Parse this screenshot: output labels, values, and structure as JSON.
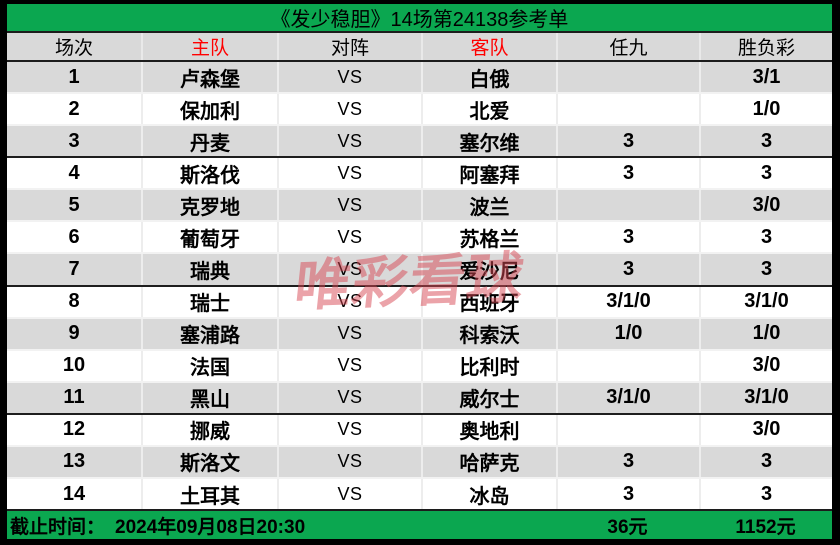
{
  "title": "《发少稳胆》14场第24138参考单",
  "watermark": "唯彩看球",
  "colors": {
    "banner_green": "#0ba750",
    "row_alt_gray": "#d9d9d9",
    "header_accent_red": "#ff0000",
    "watermark_red": "#d84854",
    "border_black": "#000000"
  },
  "table": {
    "headers": [
      "场次",
      "主队",
      "对阵",
      "客队",
      "任九",
      "胜负彩"
    ],
    "rows": [
      {
        "no": "1",
        "home": "卢森堡",
        "vs": "VS",
        "away": "白俄",
        "renjiu": "",
        "sfc": "3/1"
      },
      {
        "no": "2",
        "home": "保加利",
        "vs": "VS",
        "away": "北爱",
        "renjiu": "",
        "sfc": "1/0"
      },
      {
        "no": "3",
        "home": "丹麦",
        "vs": "VS",
        "away": "塞尔维",
        "renjiu": "3",
        "sfc": "3"
      },
      {
        "no": "4",
        "home": "斯洛伐",
        "vs": "VS",
        "away": "阿塞拜",
        "renjiu": "3",
        "sfc": "3"
      },
      {
        "no": "5",
        "home": "克罗地",
        "vs": "VS",
        "away": "波兰",
        "renjiu": "",
        "sfc": "3/0"
      },
      {
        "no": "6",
        "home": "葡萄牙",
        "vs": "VS",
        "away": "苏格兰",
        "renjiu": "3",
        "sfc": "3"
      },
      {
        "no": "7",
        "home": "瑞典",
        "vs": "VS",
        "away": "爱沙尼",
        "renjiu": "3",
        "sfc": "3"
      },
      {
        "no": "8",
        "home": "瑞士",
        "vs": "VS",
        "away": "西班牙",
        "renjiu": "3/1/0",
        "sfc": "3/1/0"
      },
      {
        "no": "9",
        "home": "塞浦路",
        "vs": "VS",
        "away": "科索沃",
        "renjiu": "1/0",
        "sfc": "1/0"
      },
      {
        "no": "10",
        "home": "法国",
        "vs": "VS",
        "away": "比利时",
        "renjiu": "",
        "sfc": "3/0"
      },
      {
        "no": "11",
        "home": "黑山",
        "vs": "VS",
        "away": "威尔士",
        "renjiu": "3/1/0",
        "sfc": "3/1/0"
      },
      {
        "no": "12",
        "home": "挪威",
        "vs": "VS",
        "away": "奥地利",
        "renjiu": "",
        "sfc": "3/0"
      },
      {
        "no": "13",
        "home": "斯洛文",
        "vs": "VS",
        "away": "哈萨克",
        "renjiu": "3",
        "sfc": "3"
      },
      {
        "no": "14",
        "home": "土耳其",
        "vs": "VS",
        "away": "冰岛",
        "renjiu": "3",
        "sfc": "3"
      }
    ]
  },
  "footer": {
    "deadline_label": "截止时间：",
    "deadline_value": "2024年09月08日20:30",
    "renjiu_total": "36元",
    "shengfucai_total": "1152元"
  }
}
